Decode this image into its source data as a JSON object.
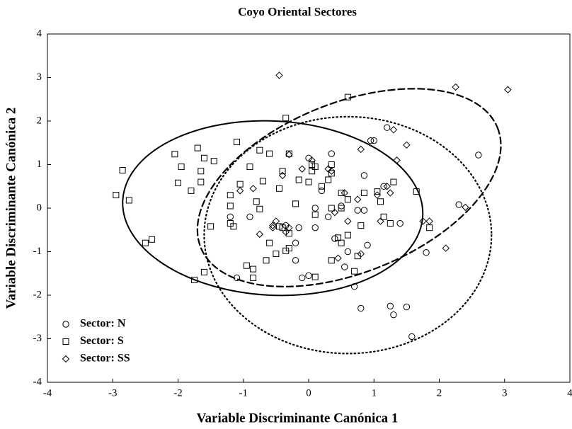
{
  "chart_data": {
    "type": "scatter",
    "title": "Coyo Oriental Sectores",
    "x_label": "Variable Discriminante Canónica 1",
    "y_label": "Variable Discriminante Canónica 2",
    "xlim": [
      -4,
      4
    ],
    "ylim": [
      -4,
      4
    ],
    "xticks": [
      -4,
      -3,
      -2,
      -1,
      0,
      1,
      2,
      3,
      4
    ],
    "yticks": [
      -4,
      -3,
      -2,
      -1,
      0,
      1,
      2,
      3,
      4
    ],
    "legend": "lower left",
    "grid": false,
    "series": [
      {
        "name": "Sector: N",
        "color": "#000000",
        "marker": "circle",
        "dash": "dotted",
        "ellipse": {
          "center": [
            0.6,
            -0.62
          ],
          "radii": [
            2.2,
            2.72
          ],
          "angle": 0
        },
        "x": [
          -1.2,
          -1.1,
          -0.9,
          -0.2,
          -0.2,
          -0.15,
          -0.1,
          0.0,
          0.0,
          0.1,
          0.1,
          0.35,
          0.4,
          0.5,
          0.55,
          0.6,
          0.7,
          0.75,
          0.8,
          0.85,
          0.85,
          0.9,
          0.95,
          1.0,
          1.2,
          1.25,
          1.3,
          1.4,
          1.5,
          1.58,
          1.8,
          2.3,
          2.6,
          0.2,
          -0.35,
          0.3,
          1.15
        ],
        "y": [
          -0.2,
          -1.6,
          -0.2,
          -0.8,
          -1.2,
          -0.45,
          -1.6,
          -1.55,
          1.15,
          -0.45,
          0.0,
          1.25,
          -0.7,
          0.05,
          -1.35,
          -1.0,
          -1.8,
          -0.05,
          -2.3,
          -0.05,
          0.75,
          -0.85,
          1.55,
          1.55,
          1.85,
          -2.25,
          -2.45,
          -0.35,
          -2.27,
          -2.95,
          -1.02,
          0.08,
          1.22,
          0.4,
          -0.4,
          -0.2,
          0.5
        ]
      },
      {
        "name": "Sector: S",
        "color": "#000000",
        "marker": "square",
        "dash": "solid",
        "ellipse": {
          "center": [
            -0.55,
            0.0
          ],
          "radii": [
            2.3,
            2.0
          ],
          "angle": 3
        },
        "x": [
          -2.95,
          -2.85,
          -2.75,
          -2.5,
          -2.4,
          -2.05,
          -2.0,
          -1.95,
          -1.8,
          -1.7,
          -1.65,
          -1.65,
          -1.6,
          -1.6,
          -1.75,
          -1.5,
          -1.45,
          -1.2,
          -1.2,
          -1.2,
          -1.15,
          -1.1,
          -1.05,
          -0.95,
          -0.9,
          -0.85,
          -0.85,
          -0.8,
          -0.75,
          -0.75,
          -0.7,
          -0.65,
          -0.6,
          -0.6,
          -0.5,
          -0.45,
          -0.45,
          -0.4,
          -0.4,
          -0.35,
          -0.3,
          -0.3,
          -0.3,
          -0.2,
          -0.15,
          0.0,
          0.05,
          0.05,
          0.1,
          0.1,
          0.1,
          0.2,
          0.3,
          0.35,
          0.35,
          0.35,
          0.45,
          0.5,
          0.5,
          0.5,
          0.6,
          0.6,
          0.6,
          0.7,
          0.75,
          0.8,
          0.85,
          1.05,
          1.1,
          1.15,
          1.25,
          1.3,
          1.65,
          1.85,
          -0.35,
          0.35
        ],
        "y": [
          0.3,
          0.87,
          0.18,
          -0.8,
          -0.72,
          1.24,
          0.58,
          0.95,
          0.4,
          1.38,
          0.85,
          0.6,
          1.15,
          -1.47,
          -1.65,
          -0.42,
          1.08,
          0.05,
          0.3,
          -0.35,
          -0.42,
          1.52,
          0.55,
          -1.32,
          0.95,
          -1.6,
          -1.4,
          0.15,
          -0.02,
          1.33,
          0.62,
          -1.2,
          -0.8,
          1.25,
          -1.05,
          0.45,
          -0.42,
          -0.45,
          0.85,
          -0.98,
          -0.58,
          -0.92,
          1.25,
          0.1,
          0.65,
          0.6,
          0.85,
          1.0,
          0.95,
          -1.58,
          -0.15,
          0.5,
          0.65,
          0.8,
          1.0,
          -1.2,
          -0.68,
          -0.8,
          0.35,
          0.0,
          2.55,
          -0.62,
          0.2,
          -1.45,
          -1.1,
          -0.4,
          0.35,
          0.38,
          0.15,
          -0.2,
          -0.35,
          0.6,
          0.38,
          -0.45,
          2.07,
          0.0
        ]
      },
      {
        "name": "Sector: SS",
        "color": "#000000",
        "marker": "diamond",
        "dash": "dashed",
        "ellipse": {
          "center": [
            0.62,
            0.47
          ],
          "radii": [
            2.45,
            1.95
          ],
          "angle": -22
        },
        "x": [
          -0.45,
          -1.05,
          -0.85,
          -0.75,
          -0.55,
          -0.5,
          -0.4,
          -0.35,
          -0.3,
          -0.3,
          -0.1,
          0.05,
          0.3,
          0.35,
          0.4,
          0.45,
          0.55,
          0.6,
          0.75,
          0.8,
          0.8,
          1.05,
          1.1,
          1.2,
          1.25,
          1.3,
          1.35,
          1.5,
          1.75,
          1.85,
          2.1,
          2.25,
          2.4,
          3.05,
          -0.55
        ],
        "y": [
          3.05,
          0.4,
          0.45,
          -0.6,
          -0.4,
          -0.3,
          0.75,
          -0.55,
          -0.45,
          1.23,
          0.9,
          1.1,
          0.9,
          0.85,
          -0.1,
          -1.15,
          0.35,
          -0.3,
          0.2,
          -1.05,
          1.35,
          0.3,
          -0.3,
          0.5,
          0.35,
          1.8,
          1.1,
          1.45,
          -0.3,
          -0.3,
          -0.92,
          2.78,
          0.02,
          2.72,
          -0.45
        ]
      }
    ]
  }
}
